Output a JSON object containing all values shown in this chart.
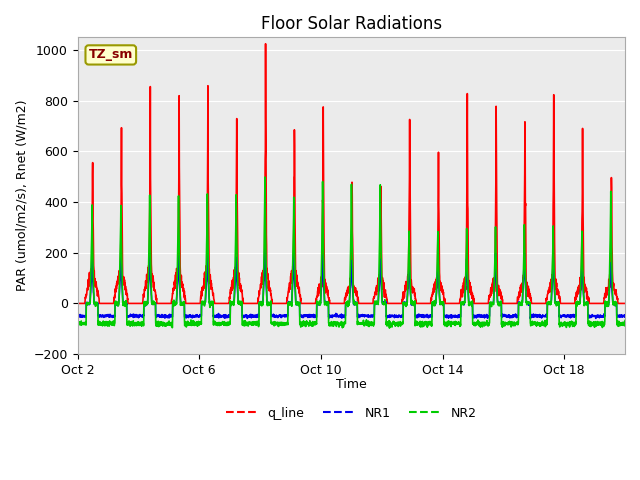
{
  "title": "Floor Solar Radiations",
  "xlabel": "Time",
  "ylabel": "PAR (umol/m2/s), Rnet (W/m2)",
  "ylim": [
    -200,
    1050
  ],
  "yticks": [
    -200,
    0,
    200,
    400,
    600,
    800,
    1000
  ],
  "xtick_labels": [
    "Oct 2",
    "Oct 6",
    "Oct 10",
    "Oct 14",
    "Oct 18"
  ],
  "xtick_positions": [
    1,
    5,
    9,
    13,
    17
  ],
  "annotation_text": "TZ_sm",
  "annotation_bg": "#FFFFCC",
  "annotation_border": "#999900",
  "line_colors": {
    "q_line": "#FF0000",
    "NR1": "#0000EE",
    "NR2": "#00CC00"
  },
  "legend_labels": [
    "q_line",
    "NR1",
    "NR2"
  ],
  "plot_bg": "#EBEBEB",
  "title_fontsize": 12,
  "axis_fontsize": 9,
  "num_days": 19,
  "points_per_day": 144,
  "day_peaks_q": [
    600,
    650,
    760,
    760,
    750,
    770,
    930,
    760,
    780,
    510,
    510,
    750,
    540,
    750,
    760,
    760,
    750,
    650,
    560
  ],
  "day_peaks_nr1": [
    180,
    190,
    195,
    190,
    195,
    185,
    230,
    195,
    190,
    175,
    175,
    175,
    170,
    175,
    195,
    195,
    185,
    175,
    160
  ],
  "day_peaks_nr2": [
    380,
    390,
    430,
    430,
    425,
    430,
    490,
    430,
    475,
    465,
    465,
    295,
    290,
    295,
    310,
    310,
    305,
    295,
    450
  ],
  "nr1_night": -50,
  "nr2_night": -80,
  "q_daytime_base_days": 8,
  "q_daytime_base_val": 120
}
